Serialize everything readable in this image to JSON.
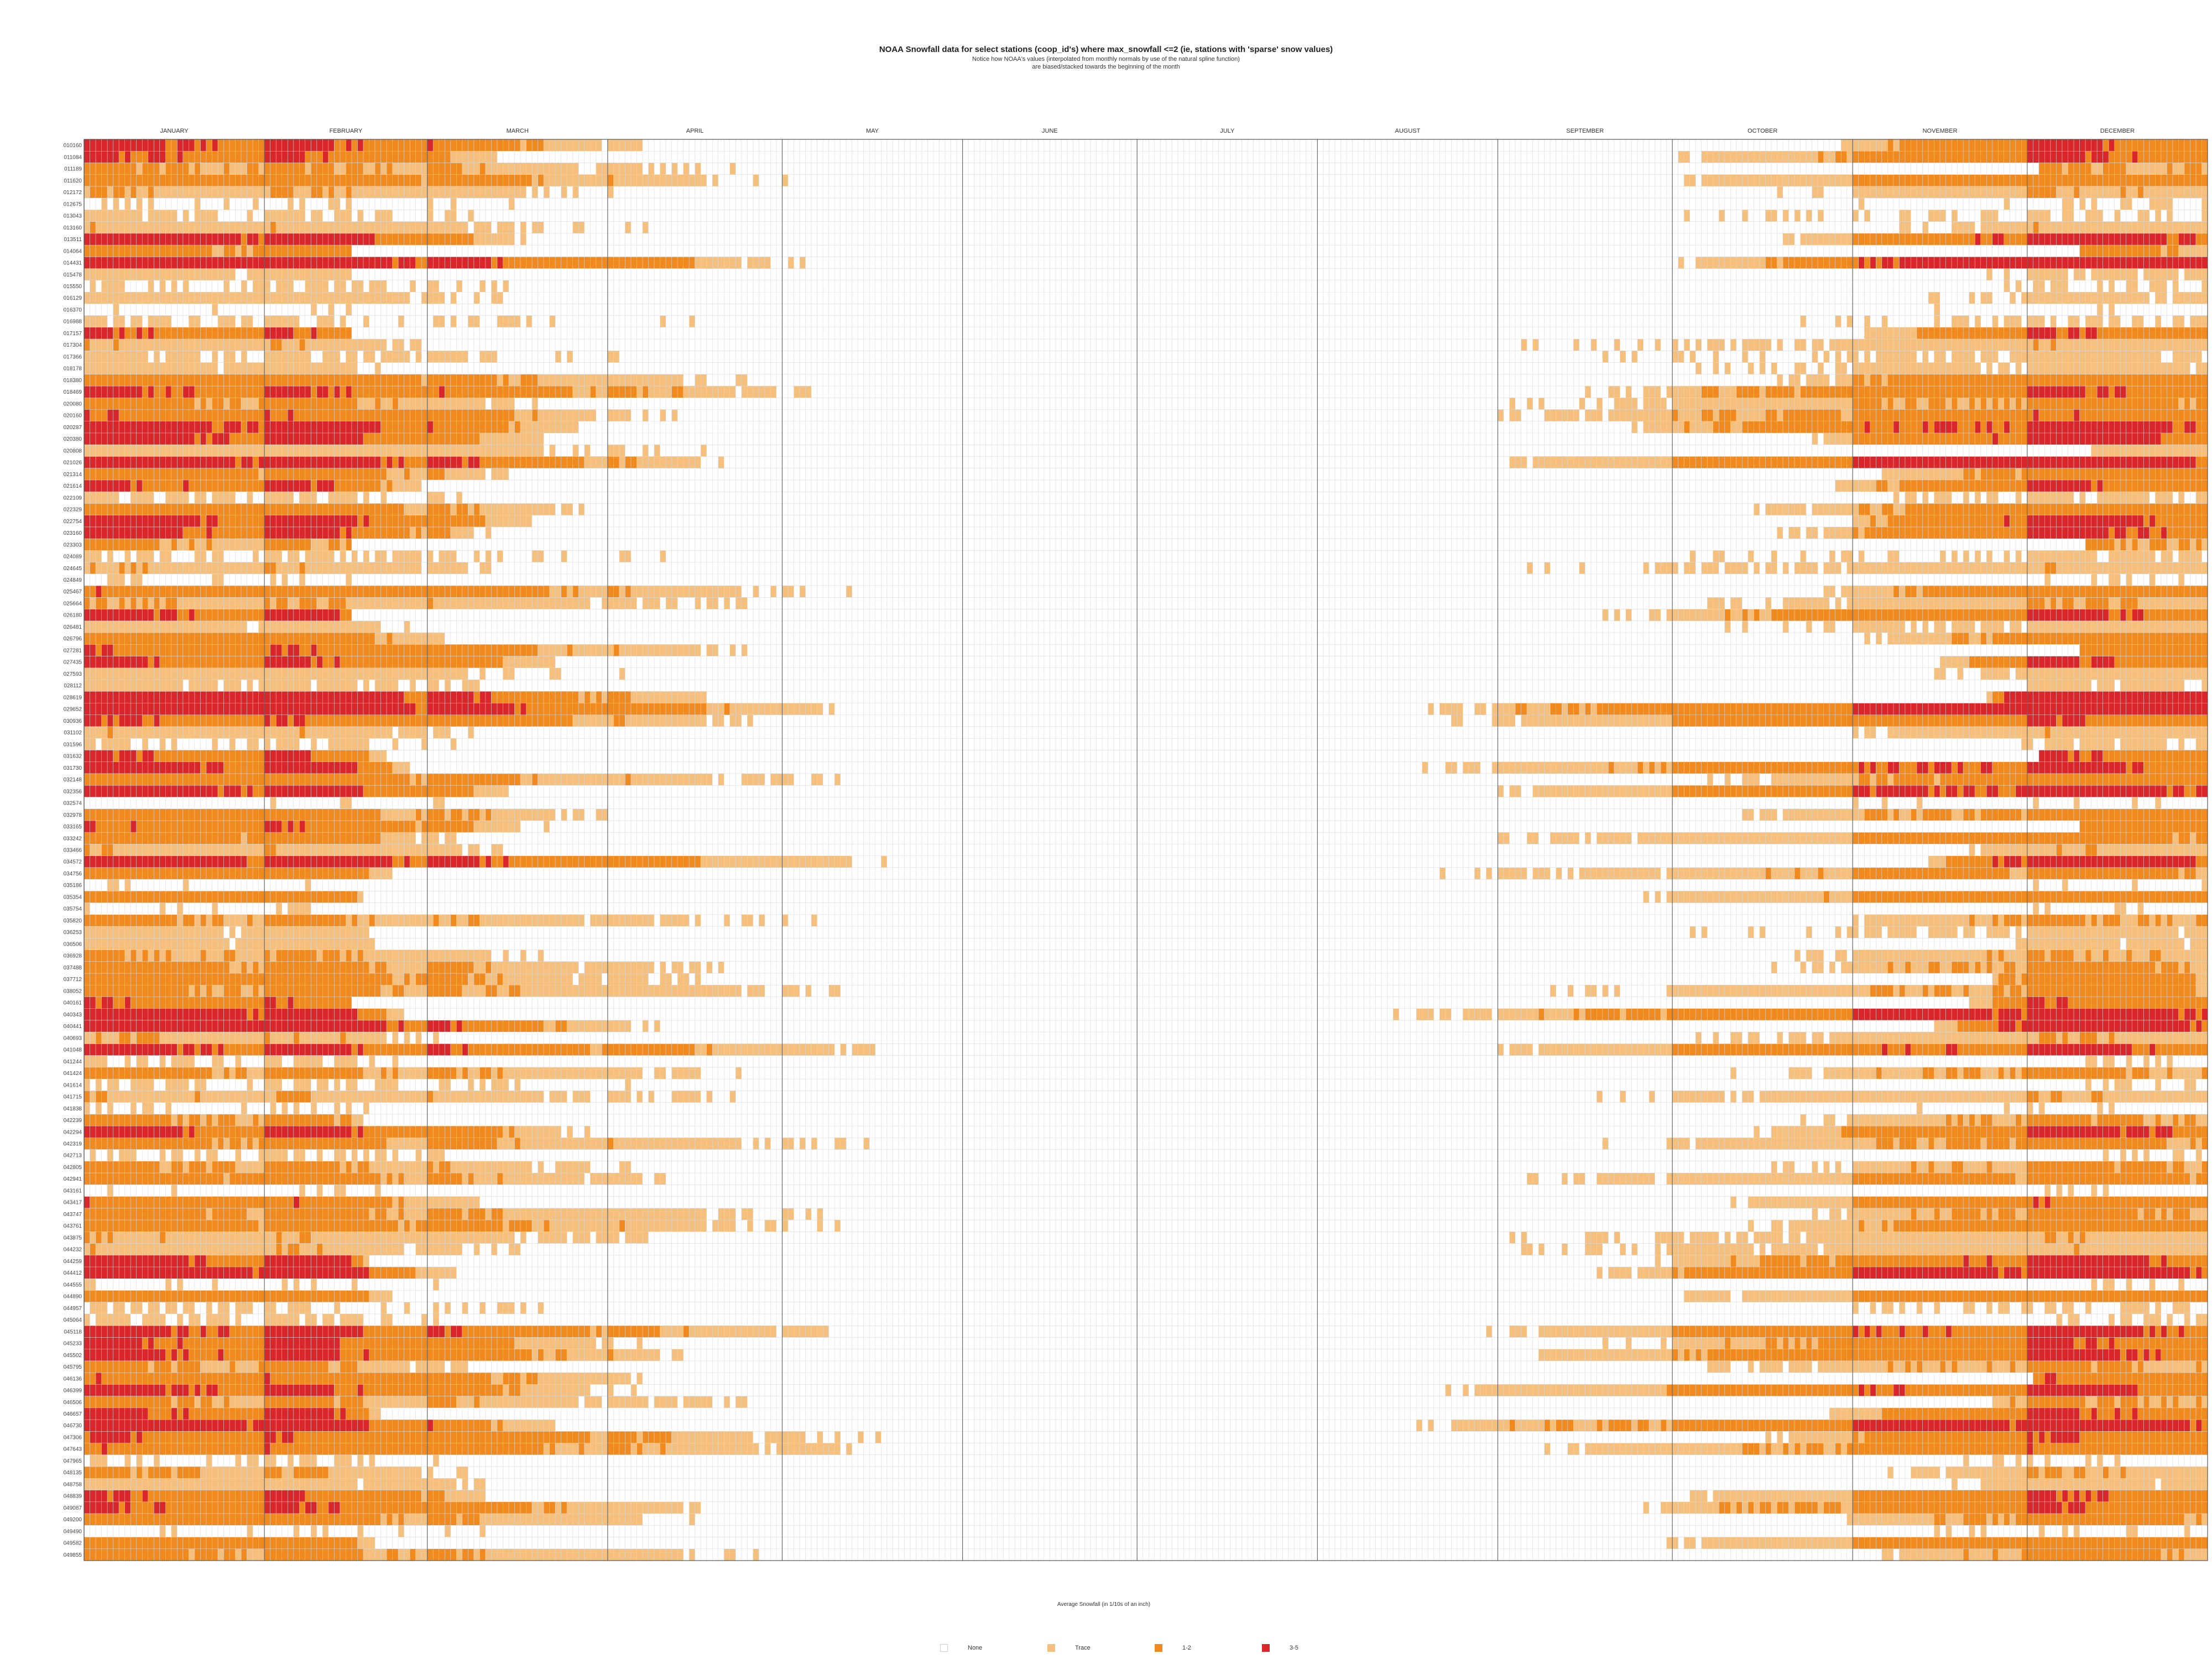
{
  "chart_data": {
    "type": "heatmap",
    "title": "NOAA Snowfall data for select stations (coop_id's) where max_snowfall <=2 (ie, stations with 'sparse' snow values)",
    "subtitle": [
      "Notice how NOAA's values (interpolated from monthly normals by use of the natural spline function)",
      "are biased/stacked towards the beginning of the month"
    ],
    "xlabel": "Average Snowfall (in 1/10s of an inch)",
    "x_categories": [
      "JANUARY",
      "FEBRUARY",
      "MARCH",
      "APRIL",
      "MAY",
      "JUNE",
      "JULY",
      "AUGUST",
      "SEPTEMBER",
      "OCTOBER",
      "NOVEMBER",
      "DECEMBER"
    ],
    "days_per_month": [
      31,
      28,
      31,
      30,
      31,
      30,
      31,
      31,
      30,
      31,
      30,
      31
    ],
    "legend": [
      {
        "label": "None",
        "color": "#ffffff"
      },
      {
        "label": "Trace",
        "color": "#f5c07e"
      },
      {
        "label": "1-2",
        "color": "#f08a1e"
      },
      {
        "label": "3-5",
        "color": "#d8262a"
      }
    ],
    "stations": [
      "010160",
      "011084",
      "011189",
      "011620",
      "012172",
      "012675",
      "013043",
      "013160",
      "013511",
      "014064",
      "014431",
      "015478",
      "015550",
      "016129",
      "016370",
      "016988",
      "017157",
      "017304",
      "017366",
      "018178",
      "018380",
      "018469",
      "020080",
      "020160",
      "020287",
      "020380",
      "020808",
      "021026",
      "021314",
      "021614",
      "022109",
      "022329",
      "022754",
      "023160",
      "023303",
      "024089",
      "024645",
      "024849",
      "025467",
      "025664",
      "026180",
      "026481",
      "026796",
      "027281",
      "027435",
      "027593",
      "028112",
      "028619",
      "029652",
      "030936",
      "031102",
      "031596",
      "031632",
      "031730",
      "032148",
      "032356",
      "032574",
      "032978",
      "033165",
      "033242",
      "033466",
      "034572",
      "034756",
      "035186",
      "035354",
      "035754",
      "035820",
      "036253",
      "036506",
      "036928",
      "037488",
      "037712",
      "038052",
      "040161",
      "040343",
      "040441",
      "040693",
      "041048",
      "041244",
      "041424",
      "041614",
      "041715",
      "041838",
      "042239",
      "042294",
      "042319",
      "042713",
      "042805",
      "042941",
      "043161",
      "043417",
      "043747",
      "043761",
      "043875",
      "044232",
      "044259",
      "044412",
      "044555",
      "044890",
      "044957",
      "045064",
      "045118",
      "045233",
      "045502",
      "045795",
      "046136",
      "046399",
      "046506",
      "046657",
      "046730",
      "047306",
      "047643",
      "047965",
      "048135",
      "048758",
      "048839",
      "049087",
      "049200",
      "049490",
      "049582",
      "049855"
    ],
    "note": "Each station row holds 365 daily cells; cell colour encodes average snowfall class (0 None, 1 Trace, 2 1-2, 3 3-5). Row patterns encode the visible winter-concentrated distribution."
  }
}
